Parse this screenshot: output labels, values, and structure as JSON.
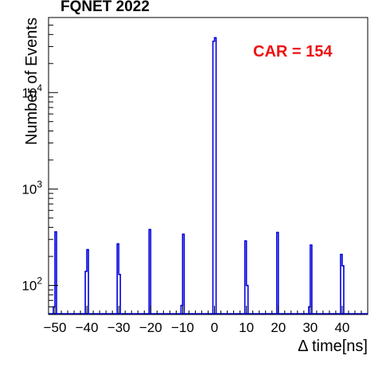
{
  "chart_data": {
    "type": "histogram",
    "title": "FQNET 2022",
    "xlabel": "Δ time[ns]",
    "ylabel": "Number of Events",
    "annotation": "CAR = 154",
    "annotation_color": "#ee1111",
    "line_color": "#0000dd",
    "xlim": [
      -52,
      48
    ],
    "ylim": [
      50,
      60000
    ],
    "y_scale": "log",
    "x_ticks": [
      -50,
      -40,
      -30,
      -20,
      -10,
      0,
      10,
      20,
      30,
      40
    ],
    "x_tick_labels": [
      "−50",
      "−40",
      "−30",
      "−20",
      "−10",
      "0",
      "10",
      "20",
      "30",
      "40"
    ],
    "y_tick_base": "10",
    "y_ticks": [
      {
        "value": 100,
        "exponent": "2"
      },
      {
        "value": 1000,
        "exponent": "3"
      },
      {
        "value": 10000,
        "exponent": "4"
      }
    ],
    "bin_width": 0.5,
    "peaks": [
      {
        "center": -50,
        "bins": [
          [
            -50.5,
            60
          ],
          [
            -50.0,
            360
          ]
        ]
      },
      {
        "center": -40,
        "bins": [
          [
            -40.5,
            140
          ],
          [
            -40.0,
            235
          ]
        ]
      },
      {
        "center": -30,
        "bins": [
          [
            -30.5,
            270
          ],
          [
            -30.0,
            130
          ]
        ]
      },
      {
        "center": -20,
        "bins": [
          [
            -20.5,
            380
          ]
        ]
      },
      {
        "center": -10,
        "bins": [
          [
            -10.5,
            62
          ],
          [
            -10.0,
            340
          ]
        ]
      },
      {
        "center": 0,
        "bins": [
          [
            -0.5,
            34000
          ],
          [
            0.0,
            37000
          ]
        ]
      },
      {
        "center": 10,
        "bins": [
          [
            9.5,
            290
          ],
          [
            10.0,
            100
          ]
        ]
      },
      {
        "center": 20,
        "bins": [
          [
            19.5,
            355
          ]
        ]
      },
      {
        "center": 30,
        "bins": [
          [
            29.5,
            60
          ],
          [
            30.0,
            262
          ]
        ]
      },
      {
        "center": 40,
        "bins": [
          [
            39.5,
            210
          ],
          [
            40.0,
            160
          ]
        ]
      }
    ]
  }
}
